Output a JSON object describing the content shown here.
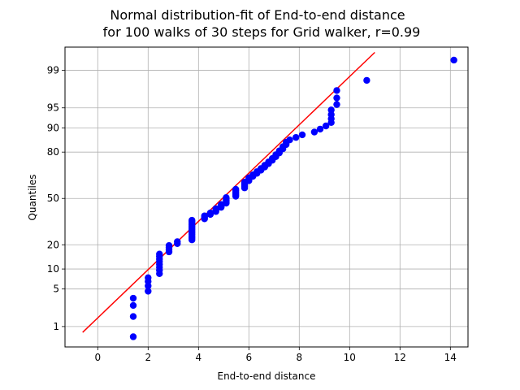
{
  "chart_data": {
    "type": "scatter",
    "title_line1": "Normal distribution-fit of End-to-end distance",
    "title_line2": "for 100 walks of 30 steps for Grid walker, r=0.99",
    "xlabel": "End-to-end distance",
    "ylabel": "Quantiles",
    "xlim": [
      -1.3,
      14.7
    ],
    "ylim_percent": [
      0.35,
      99.7
    ],
    "y_scale": "probit",
    "grid": true,
    "x_ticks": [
      0,
      2,
      4,
      6,
      8,
      10,
      12,
      14
    ],
    "y_ticks": [
      1,
      5,
      10,
      20,
      50,
      80,
      90,
      95,
      99
    ],
    "point_color": "#0000ff",
    "line_color": "#ff0000",
    "fit_line": {
      "x": [
        -0.6,
        11.0
      ],
      "y_percent": [
        0.75,
        99.6
      ]
    },
    "series": [
      {
        "points": [
          [
            1.41,
            0.6
          ],
          [
            1.41,
            1.6
          ],
          [
            1.41,
            2.6
          ],
          [
            1.41,
            3.5
          ],
          [
            2.0,
            4.6
          ],
          [
            2.0,
            5.6
          ],
          [
            2.0,
            6.6
          ],
          [
            2.0,
            7.5
          ],
          [
            2.45,
            8.6
          ],
          [
            2.45,
            9.6
          ],
          [
            2.45,
            10.6
          ],
          [
            2.45,
            11.6
          ],
          [
            2.45,
            12.6
          ],
          [
            2.45,
            13.5
          ],
          [
            2.45,
            14.6
          ],
          [
            2.45,
            15.6
          ],
          [
            2.83,
            16.6
          ],
          [
            2.83,
            17.6
          ],
          [
            2.83,
            18.6
          ],
          [
            2.83,
            19.6
          ],
          [
            3.16,
            20.6
          ],
          [
            3.16,
            21.6
          ],
          [
            3.74,
            22.6
          ],
          [
            3.74,
            23.6
          ],
          [
            3.74,
            24.6
          ],
          [
            3.74,
            25.6
          ],
          [
            3.74,
            26.6
          ],
          [
            3.74,
            27.6
          ],
          [
            3.74,
            28.6
          ],
          [
            3.74,
            29.6
          ],
          [
            3.74,
            30.6
          ],
          [
            3.74,
            31.6
          ],
          [
            3.74,
            32.6
          ],
          [
            3.74,
            33.6
          ],
          [
            3.74,
            34.6
          ],
          [
            4.24,
            35.6
          ],
          [
            4.24,
            36.6
          ],
          [
            4.24,
            37.6
          ],
          [
            4.47,
            38.6
          ],
          [
            4.47,
            39.6
          ],
          [
            4.69,
            40.6
          ],
          [
            4.69,
            41.6
          ],
          [
            4.69,
            42.6
          ],
          [
            4.9,
            43.6
          ],
          [
            4.9,
            44.6
          ],
          [
            4.9,
            45.6
          ],
          [
            5.1,
            46.6
          ],
          [
            5.1,
            47.6
          ],
          [
            5.1,
            48.6
          ],
          [
            5.1,
            49.6
          ],
          [
            5.1,
            50.6
          ],
          [
            5.48,
            51.6
          ],
          [
            5.48,
            52.6
          ],
          [
            5.48,
            53.6
          ],
          [
            5.48,
            54.6
          ],
          [
            5.48,
            55.6
          ],
          [
            5.48,
            56.6
          ],
          [
            5.83,
            57.6
          ],
          [
            5.83,
            58.6
          ],
          [
            5.83,
            59.6
          ],
          [
            5.83,
            60.6
          ],
          [
            5.83,
            61.6
          ],
          [
            6.0,
            62.6
          ],
          [
            6.0,
            63.6
          ],
          [
            6.0,
            64.6
          ],
          [
            6.16,
            65.6
          ],
          [
            6.16,
            66.6
          ],
          [
            6.32,
            67.6
          ],
          [
            6.32,
            68.6
          ],
          [
            6.48,
            69.6
          ],
          [
            6.48,
            70.6
          ],
          [
            6.63,
            71.6
          ],
          [
            6.63,
            72.6
          ],
          [
            6.78,
            73.6
          ],
          [
            6.78,
            74.6
          ],
          [
            6.93,
            75.6
          ],
          [
            6.93,
            76.6
          ],
          [
            7.07,
            77.6
          ],
          [
            7.07,
            78.6
          ],
          [
            7.21,
            79.6
          ],
          [
            7.21,
            80.6
          ],
          [
            7.35,
            81.6
          ],
          [
            7.35,
            82.6
          ],
          [
            7.48,
            83.6
          ],
          [
            7.48,
            84.6
          ],
          [
            7.62,
            85.6
          ],
          [
            7.87,
            86.6
          ],
          [
            8.12,
            87.6
          ],
          [
            8.6,
            88.6
          ],
          [
            8.83,
            89.6
          ],
          [
            9.06,
            90.6
          ],
          [
            9.27,
            91.6
          ],
          [
            9.27,
            92.6
          ],
          [
            9.27,
            93.6
          ],
          [
            9.27,
            94.6
          ],
          [
            9.49,
            95.6
          ],
          [
            9.49,
            96.6
          ],
          [
            9.49,
            97.5
          ],
          [
            10.68,
            98.4
          ],
          [
            14.14,
            99.4
          ]
        ]
      }
    ]
  }
}
